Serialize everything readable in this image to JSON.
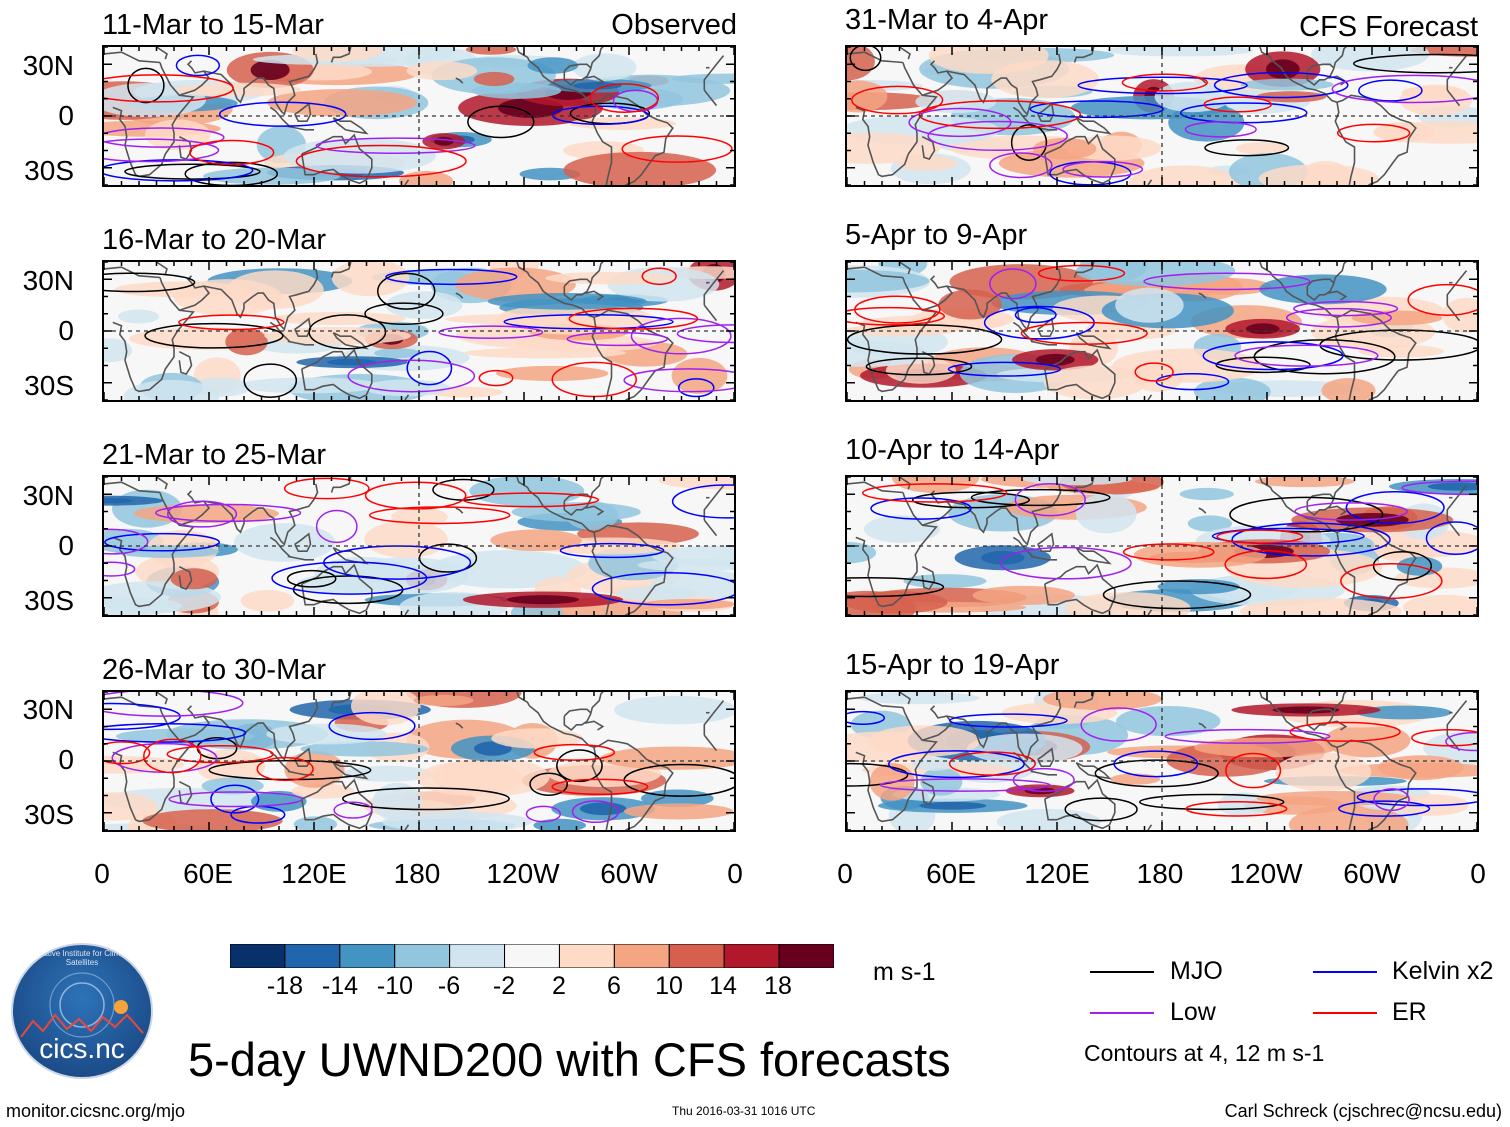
{
  "title": "5-day UWND200 with CFS forecasts",
  "footer": {
    "url": "monitor.cicsnc.org/mjo",
    "timestamp": "Thu 2016-03-31 1016 UTC",
    "author": "Carl Schreck (cjschrec@ncsu.edu)"
  },
  "logo": {
    "text": "cics.nc",
    "arc_text": "Cooperative Institute for Climate and Satellites"
  },
  "panel_tags": {
    "observed": "Observed",
    "forecast": "CFS Forecast"
  },
  "chart_data": {
    "type": "heatmap",
    "variable": "200-hPa zonal wind anomaly",
    "units": "m s-1",
    "lat_ticks": [
      "30N",
      "0",
      "30S"
    ],
    "lon_ticks": [
      "0",
      "60E",
      "120E",
      "180",
      "120W",
      "60W",
      "0"
    ],
    "lat_range": [
      -40,
      40
    ],
    "lon_range": [
      0,
      360
    ],
    "colorbar": {
      "levels": [
        "-18",
        "-14",
        "-10",
        "-6",
        "-2",
        "2",
        "6",
        "10",
        "14",
        "18"
      ],
      "colors": [
        "#08306b",
        "#2166ac",
        "#4393c3",
        "#92c5de",
        "#d1e5f0",
        "#f7f7f7",
        "#fddbc7",
        "#f4a582",
        "#d6604d",
        "#b2182b",
        "#67001f"
      ]
    },
    "legend": [
      {
        "label": "MJO",
        "color": "#000000"
      },
      {
        "label": "Kelvin x2",
        "color": "#0000ff"
      },
      {
        "label": "Low",
        "color": "#a020f0"
      },
      {
        "label": "ER",
        "color": "#ff0000"
      }
    ],
    "contour_note": "Contours at 4, 12 m s-1",
    "panels": [
      {
        "period": "11-Mar to 15-Mar",
        "source": "observed"
      },
      {
        "period": "16-Mar to 20-Mar",
        "source": "observed"
      },
      {
        "period": "21-Mar to 25-Mar",
        "source": "observed"
      },
      {
        "period": "26-Mar to 30-Mar",
        "source": "observed"
      },
      {
        "period": "31-Mar to 4-Apr",
        "source": "forecast"
      },
      {
        "period": "5-Apr to 9-Apr",
        "source": "forecast"
      },
      {
        "period": "10-Apr to 14-Apr",
        "source": "forecast"
      },
      {
        "period": "15-Apr to 19-Apr",
        "source": "forecast"
      }
    ]
  }
}
